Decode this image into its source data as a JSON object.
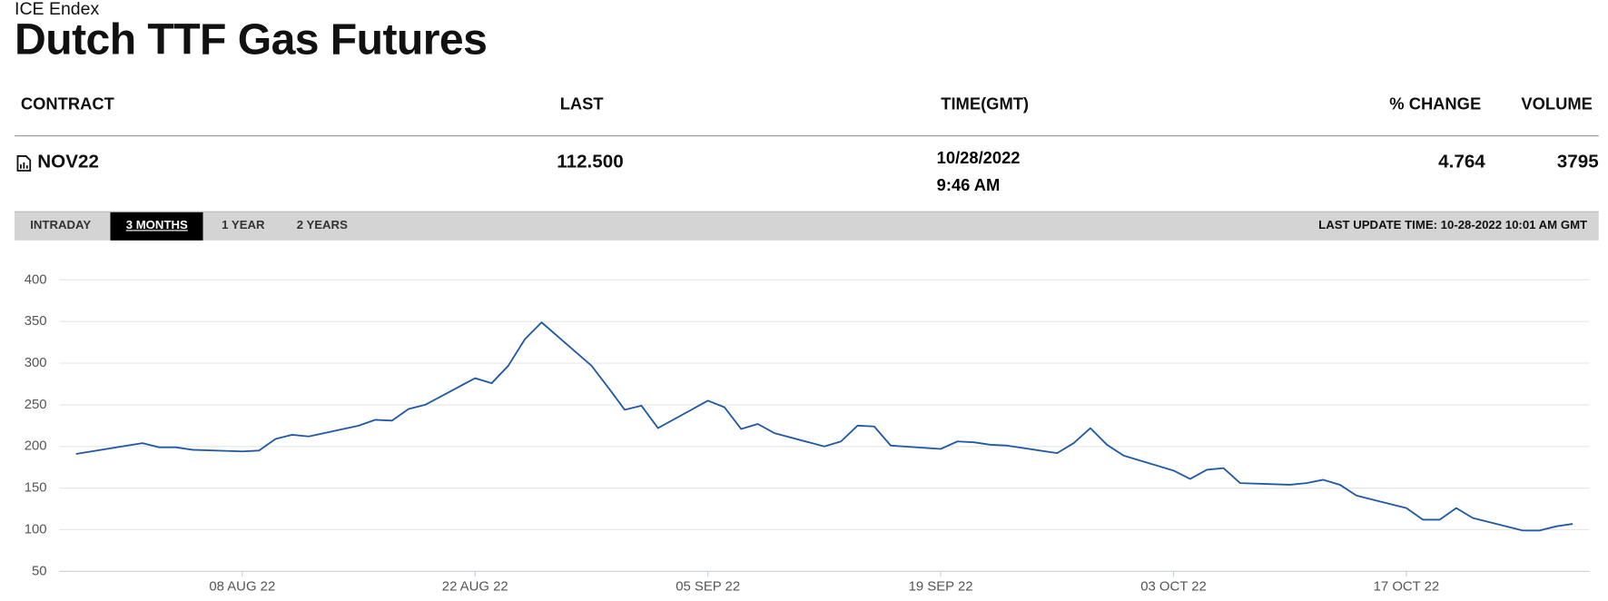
{
  "header": {
    "exchange": "ICE Endex",
    "title": "Dutch TTF Gas Futures"
  },
  "table": {
    "columns": [
      "CONTRACT",
      "LAST",
      "TIME(GMT)",
      "% CHANGE",
      "VOLUME"
    ],
    "rows": [
      {
        "contract": "NOV22",
        "last": "112.500",
        "date": "10/28/2022",
        "time": "9:46 AM",
        "change": "4.764",
        "volume": "3795"
      }
    ]
  },
  "tabs": {
    "items": [
      "INTRADAY",
      "3 MONTHS",
      "1 YEAR",
      "2 YEARS"
    ],
    "active": 1,
    "last_update": "LAST UPDATE TIME: 10-28-2022 10:01 AM GMT"
  },
  "chart_data": {
    "type": "line",
    "color": "#1f5aa6",
    "grid": true,
    "x": [
      "2022-07-29",
      "2022-08-02",
      "2022-08-03",
      "2022-08-04",
      "2022-08-05",
      "2022-08-08",
      "2022-08-09",
      "2022-08-10",
      "2022-08-11",
      "2022-08-12",
      "2022-08-15",
      "2022-08-16",
      "2022-08-17",
      "2022-08-18",
      "2022-08-19",
      "2022-08-22",
      "2022-08-23",
      "2022-08-24",
      "2022-08-25",
      "2022-08-26",
      "2022-08-29",
      "2022-08-30",
      "2022-08-31",
      "2022-09-01",
      "2022-09-02",
      "2022-09-05",
      "2022-09-06",
      "2022-09-07",
      "2022-09-08",
      "2022-09-09",
      "2022-09-12",
      "2022-09-13",
      "2022-09-14",
      "2022-09-15",
      "2022-09-16",
      "2022-09-19",
      "2022-09-20",
      "2022-09-21",
      "2022-09-22",
      "2022-09-23",
      "2022-09-26",
      "2022-09-27",
      "2022-09-28",
      "2022-09-29",
      "2022-09-30",
      "2022-10-03",
      "2022-10-04",
      "2022-10-05",
      "2022-10-06",
      "2022-10-07",
      "2022-10-10",
      "2022-10-11",
      "2022-10-12",
      "2022-10-13",
      "2022-10-14",
      "2022-10-17",
      "2022-10-18",
      "2022-10-19",
      "2022-10-20",
      "2022-10-21",
      "2022-10-24",
      "2022-10-25",
      "2022-10-26",
      "2022-10-27"
    ],
    "values": [
      191,
      204,
      199,
      199,
      196,
      194,
      195,
      209,
      214,
      212,
      225,
      232,
      231,
      245,
      250,
      282,
      276,
      297,
      329,
      349,
      297,
      271,
      244,
      249,
      222,
      255,
      247,
      221,
      227,
      216,
      200,
      206,
      225,
      224,
      201,
      197,
      206,
      205,
      202,
      201,
      192,
      204,
      222,
      202,
      189,
      171,
      161,
      172,
      174,
      156,
      154,
      156,
      160,
      154,
      141,
      126,
      112,
      112,
      126,
      114,
      99,
      99,
      104,
      107
    ],
    "xlim": [
      "2022-07-28",
      "2022-10-28"
    ],
    "xticks": [
      {
        "value": "2022-08-08",
        "label": "08 AUG 22"
      },
      {
        "value": "2022-08-22",
        "label": "22 AUG 22"
      },
      {
        "value": "2022-09-05",
        "label": "05 SEP 22"
      },
      {
        "value": "2022-09-19",
        "label": "19 SEP 22"
      },
      {
        "value": "2022-10-03",
        "label": "03 OCT 22"
      },
      {
        "value": "2022-10-17",
        "label": "17 OCT 22"
      }
    ],
    "ylim": [
      50,
      400
    ],
    "yticks": [
      50,
      100,
      150,
      200,
      250,
      300,
      350,
      400
    ]
  }
}
